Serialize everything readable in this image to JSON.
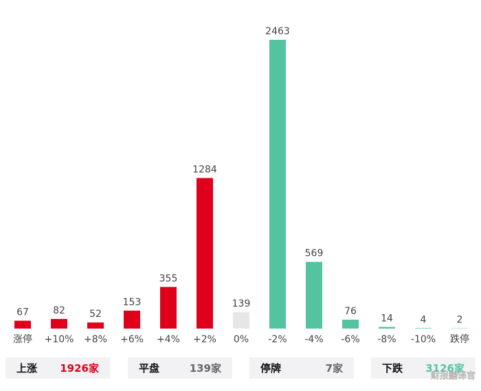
{
  "chart_data": {
    "type": "bar",
    "categories": [
      "涨停",
      "+10%",
      "+8%",
      "+6%",
      "+4%",
      "+2%",
      "0%",
      "-2%",
      "-4%",
      "-6%",
      "-8%",
      "-10%",
      "跌停"
    ],
    "values": [
      67,
      82,
      52,
      153,
      355,
      1284,
      139,
      2463,
      569,
      76,
      14,
      4,
      2
    ],
    "colors": [
      "#e0001b",
      "#e0001b",
      "#e0001b",
      "#e0001b",
      "#e0001b",
      "#e0001b",
      "#e6e6e6",
      "#54c4a0",
      "#54c4a0",
      "#54c4a0",
      "#54c4a0",
      "#54c4a0",
      "#54c4a0"
    ]
  },
  "summary": [
    {
      "label": "上涨",
      "value": "1926家",
      "color": "#e0001b"
    },
    {
      "label": "平盘",
      "value": "139家",
      "color": "#666666"
    },
    {
      "label": "停牌",
      "value": "7家",
      "color": "#666666"
    },
    {
      "label": "下跌",
      "value": "3126家",
      "color": "#54c4a0"
    }
  ],
  "watermark": "财报翻译官"
}
